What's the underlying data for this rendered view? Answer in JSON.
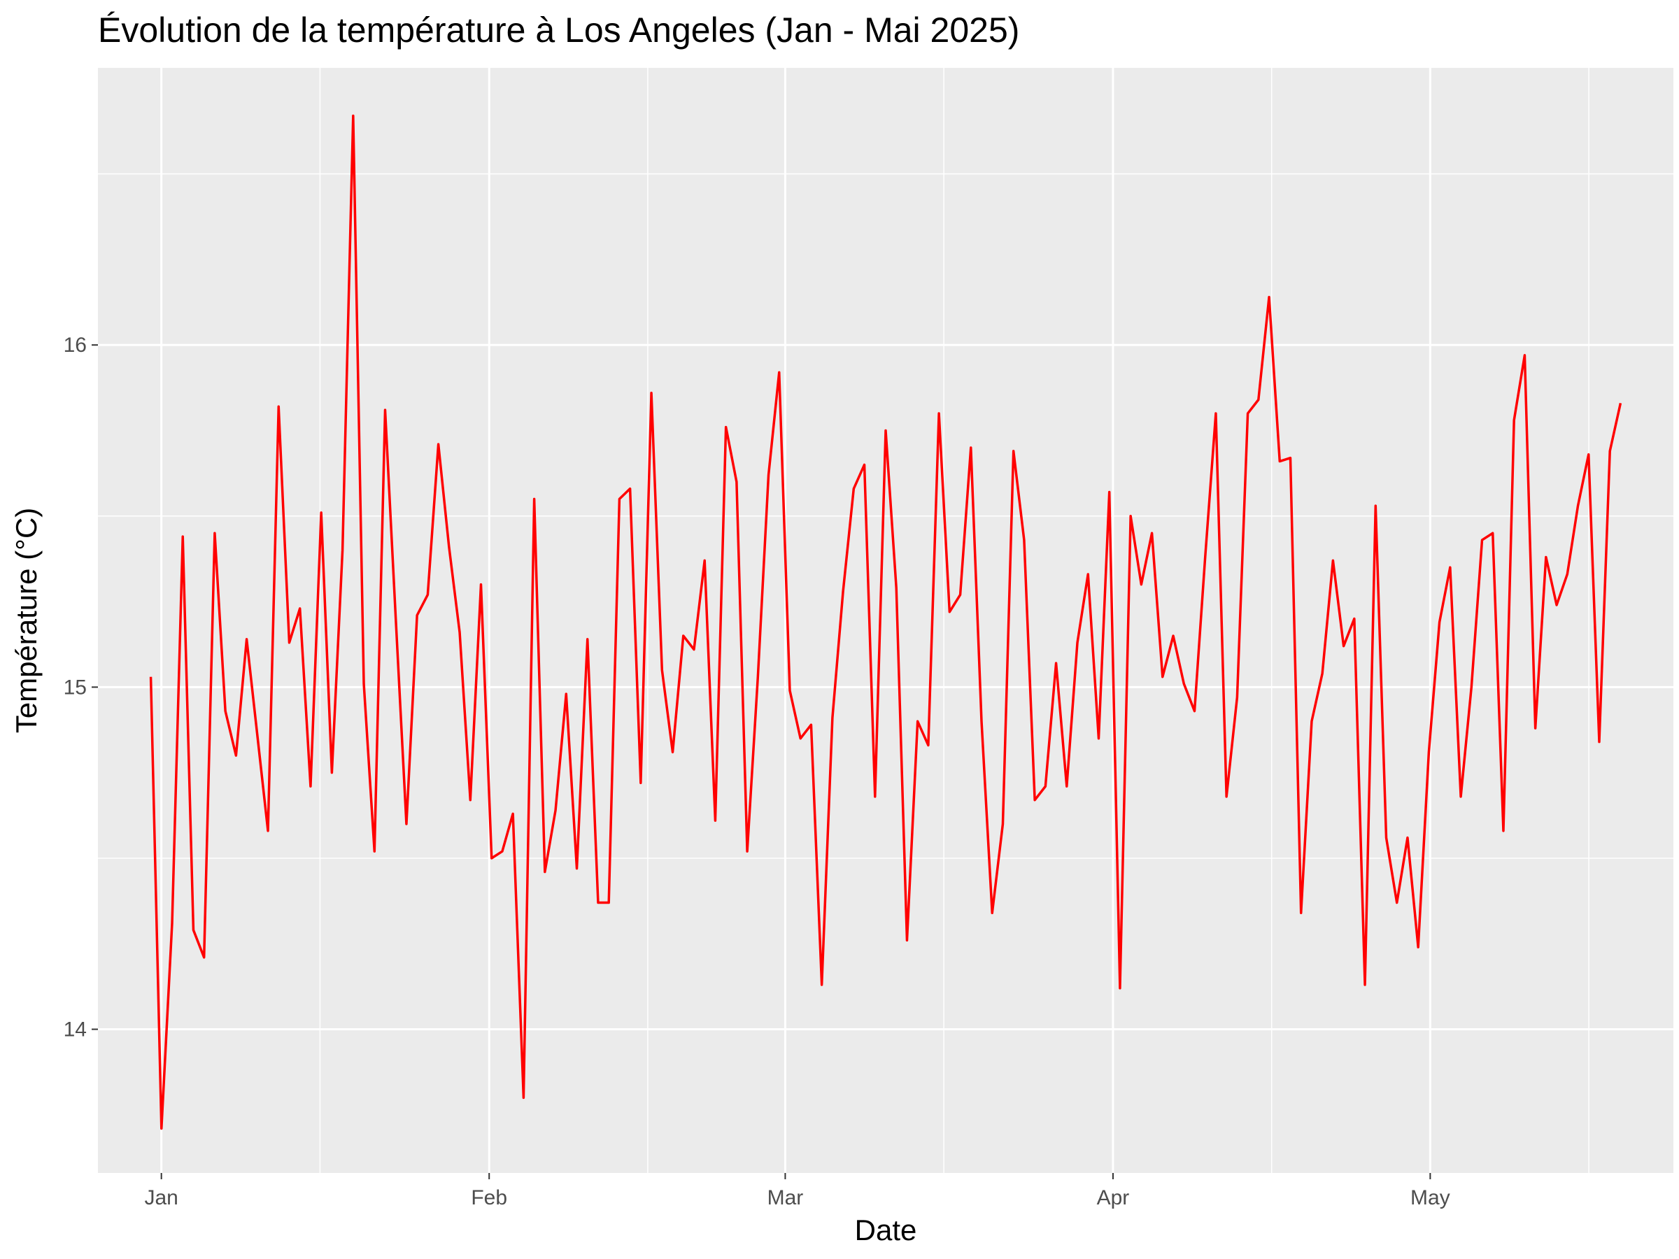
{
  "chart_data": {
    "type": "line",
    "title": "Évolution de la température à Los Angeles (Jan - Mai 2025)",
    "xlabel": "Date",
    "ylabel": "Température (°C)",
    "x_axis": {
      "kind": "date",
      "range": [
        "2024-12-26",
        "2025-05-24"
      ],
      "major_ticks": [
        {
          "date": "2025-01-01",
          "label": "Jan"
        },
        {
          "date": "2025-02-01",
          "label": "Feb"
        },
        {
          "date": "2025-03-01",
          "label": "Mar"
        },
        {
          "date": "2025-04-01",
          "label": "Apr"
        },
        {
          "date": "2025-05-01",
          "label": "May"
        }
      ],
      "minor_ticks": [
        "2025-01-16",
        "2025-02-16",
        "2025-03-16",
        "2025-04-16",
        "2025-05-16"
      ]
    },
    "y_axis": {
      "range": [
        13.58,
        16.81
      ],
      "major_ticks": [
        14,
        15,
        16
      ],
      "minor_ticks": [
        14.5,
        15.5,
        16.5
      ]
    },
    "grid": true,
    "background": "#ebebeb",
    "series": [
      {
        "color": "#ff0000",
        "start_date": "2024-12-31",
        "end_date": "2025-05-19",
        "values": [
          15.03,
          13.71,
          14.31,
          15.44,
          14.29,
          14.21,
          15.45,
          14.93,
          14.8,
          15.14,
          14.86,
          14.58,
          15.82,
          15.13,
          15.23,
          14.71,
          15.51,
          14.75,
          15.4,
          16.67,
          15.01,
          14.52,
          15.81,
          15.2,
          14.6,
          15.21,
          15.27,
          15.71,
          15.41,
          15.16,
          14.67,
          15.3,
          14.5,
          14.52,
          14.63,
          13.8,
          15.55,
          14.46,
          14.64,
          14.98,
          14.47,
          15.14,
          14.37,
          14.37,
          15.55,
          15.58,
          14.72,
          15.86,
          15.05,
          14.81,
          15.15,
          15.11,
          15.37,
          14.61,
          15.76,
          15.6,
          14.52,
          15.03,
          15.62,
          15.92,
          14.99,
          14.85,
          14.89,
          14.13,
          14.91,
          15.28,
          15.58,
          15.65,
          14.68,
          15.75,
          15.29,
          14.26,
          14.9,
          14.83,
          15.8,
          15.22,
          15.27,
          15.7,
          14.9,
          14.34,
          14.6,
          15.69,
          15.43,
          14.67,
          14.71,
          15.07,
          14.71,
          15.13,
          15.33,
          14.85,
          15.57,
          14.12,
          15.5,
          15.3,
          15.45,
          15.03,
          15.15,
          15.01,
          14.93,
          15.38,
          15.8,
          14.68,
          14.97,
          15.8,
          15.84,
          16.14,
          15.66,
          15.67,
          14.34,
          14.9,
          15.04,
          15.37,
          15.12,
          15.2,
          14.13,
          15.53,
          14.56,
          14.37,
          14.56,
          14.24,
          14.81,
          15.19,
          15.35,
          14.68,
          15.0,
          15.43,
          15.45,
          14.58,
          15.78,
          15.97,
          14.88,
          15.38,
          15.24,
          15.33,
          15.53,
          15.68,
          14.84,
          15.69,
          15.83
        ]
      }
    ]
  }
}
